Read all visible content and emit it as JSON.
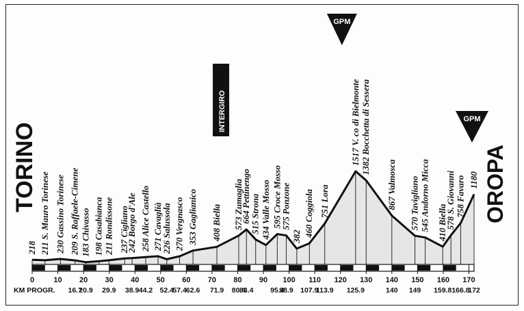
{
  "chart_data": {
    "type": "area",
    "start_label": "TORINO",
    "finish_label": "OROPA",
    "intergiro_label": "INTERGIRO",
    "gpm_label": "GPM",
    "km_progr_label": "KM PROGR.",
    "xlim": [
      0,
      172
    ],
    "x_ticks": [
      0,
      10,
      20,
      30,
      40,
      50,
      60,
      70,
      80,
      90,
      100,
      110,
      120,
      130,
      140,
      150,
      160,
      170
    ],
    "waypoints": [
      {
        "km": 0,
        "km_text": "",
        "alt": 218,
        "name": "",
        "label": "218"
      },
      {
        "km": 5,
        "km_text": "",
        "alt": 211,
        "name": "S. Mauro Torinese",
        "label": "211 S. Mauro Torinese"
      },
      {
        "km": 11,
        "km_text": "",
        "alt": 230,
        "name": "Gassino Torinese",
        "label": "230 Gassino Torinese"
      },
      {
        "km": 16.7,
        "km_text": "16.7",
        "alt": 209,
        "name": "S. Raffaele-Cimene",
        "label": "209 S. Raffaele-Cimene"
      },
      {
        "km": 20.9,
        "km_text": "20.9",
        "alt": 183,
        "name": "Chivasso",
        "label": "183 Chivasso"
      },
      {
        "km": 26,
        "km_text": "",
        "alt": 198,
        "name": "Casabianca",
        "label": "198 Casabianca"
      },
      {
        "km": 29.9,
        "km_text": "29.9",
        "alt": 211,
        "name": "Rondissone",
        "label": "211 Rondissone"
      },
      {
        "km": 36,
        "km_text": "",
        "alt": 237,
        "name": "Cigliano",
        "label": "237 Cigliano"
      },
      {
        "km": 38.9,
        "km_text": "38.9",
        "alt": 242,
        "name": "Borgo d'Ale",
        "label": "242 Borgo d'Ale"
      },
      {
        "km": 44.2,
        "km_text": "44.2",
        "alt": 258,
        "name": "Alice Castello",
        "label": "258 Alice Castello"
      },
      {
        "km": 49,
        "km_text": "",
        "alt": 271,
        "name": "Cavaglià",
        "label": "271 Cavaglià"
      },
      {
        "km": 52.4,
        "km_text": "52.4",
        "alt": 226,
        "name": "Salussola",
        "label": "226 Salussola"
      },
      {
        "km": 57.4,
        "km_text": "57.4",
        "alt": 270,
        "name": "Vergnasco",
        "label": "270 Vergnasco"
      },
      {
        "km": 62.6,
        "km_text": "62.6",
        "alt": 353,
        "name": "Gaglianico",
        "label": "353 Gaglianico"
      },
      {
        "km": 71.9,
        "km_text": "71.9",
        "alt": 408,
        "name": "Biella",
        "label": "408 Biella"
      },
      {
        "km": 80.4,
        "km_text": "80.4",
        "alt": 573,
        "name": "Zumaglia",
        "label": "573 Zumaglia"
      },
      {
        "km": 83.4,
        "km_text": "83.4",
        "alt": 664,
        "name": "Pettinengo",
        "label": "664 Pettinengo"
      },
      {
        "km": 87,
        "km_text": "",
        "alt": 515,
        "name": "Strona",
        "label": "515 Strona"
      },
      {
        "km": 91,
        "km_text": "",
        "alt": 434,
        "name": "Valle Mosso",
        "label": "434 Valle Mosso"
      },
      {
        "km": 95.4,
        "km_text": "95.4",
        "alt": 595,
        "name": "Croce Mosso",
        "label": "595 Croce Mosso"
      },
      {
        "km": 98.9,
        "km_text": "98.9",
        "alt": 575,
        "name": "Ponzone",
        "label": "575 Ponzone"
      },
      {
        "km": 103,
        "km_text": "",
        "alt": 382,
        "name": "",
        "label": "382"
      },
      {
        "km": 107.9,
        "km_text": "107.9",
        "alt": 460,
        "name": "Coggiola",
        "label": "460 Coggiola"
      },
      {
        "km": 113.9,
        "km_text": "113.9",
        "alt": 751,
        "name": "Lora",
        "label": "751 Lora"
      },
      {
        "km": 125.9,
        "km_text": "125.9",
        "alt": 1517,
        "name": "V. co di Bielmonte",
        "label": "1517 V. co di Bielmonte"
      },
      {
        "km": 130,
        "km_text": "",
        "alt": 1382,
        "name": "Bocchetta di Sessera",
        "label": "1382 Bocchetta di Sessera"
      },
      {
        "km": 140,
        "km_text": "140",
        "alt": 867,
        "name": "Valmosca",
        "label": "867 Valmosca"
      },
      {
        "km": 149,
        "km_text": "149",
        "alt": 570,
        "name": "Tavigliano",
        "label": "570 Tavigliano"
      },
      {
        "km": 153,
        "km_text": "",
        "alt": 545,
        "name": "Andorno Micca",
        "label": "545 Andorno Micca"
      },
      {
        "km": 159.8,
        "km_text": "159.8",
        "alt": 410,
        "name": "Biella",
        "label": "410 Biella"
      },
      {
        "km": 163,
        "km_text": "",
        "alt": 578,
        "name": "S. Giovanni",
        "label": "578 S. Giovanni"
      },
      {
        "km": 166.8,
        "km_text": "166.8",
        "alt": 758,
        "name": "Favaro",
        "label": "758 Favaro"
      },
      {
        "km": 172,
        "km_text": "172",
        "alt": 1180,
        "name": "",
        "label": "1180"
      }
    ],
    "intergiro_km": 71.9,
    "gpm_km": [
      125.9,
      172
    ],
    "colors": {
      "ink": "#111111",
      "fill": "#e6e6e6",
      "paper": "#fdfdfd"
    }
  }
}
